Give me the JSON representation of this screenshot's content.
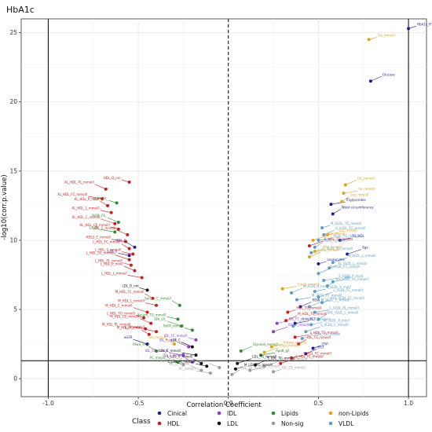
{
  "chart_data": {
    "type": "scatter",
    "title": "HbA1c",
    "xlabel": "Correlation Coefficient",
    "ylabel": "-log10(corr.p.value)",
    "xlim": [
      -1.15,
      1.1
    ],
    "ylim": [
      -1.3,
      26
    ],
    "xticks": [
      -1.0,
      -0.5,
      0.0,
      0.5,
      1.0
    ],
    "xtick_labels": [
      "-1.0",
      "-0.5",
      "0.0",
      "0.5",
      "1.0"
    ],
    "yticks": [
      0,
      5,
      10,
      15,
      20,
      25
    ],
    "ytick_labels": [
      "0",
      "5",
      "10",
      "15",
      "20",
      "25"
    ],
    "grid": true,
    "hline": 1.3,
    "vlines": [
      -1.0,
      0.0,
      1.0
    ],
    "legend_title": "Class",
    "legend_position": "bottom",
    "series": [
      {
        "name": "Cinical",
        "color": "#1f1f8f",
        "points": [
          {
            "x": 1.0,
            "y": 25.3,
            "label": "HbA1c_IFCC"
          },
          {
            "x": 0.79,
            "y": 21.5,
            "label": "Glucose"
          },
          {
            "x": 0.57,
            "y": 12.6,
            "label": "Triglycerides"
          },
          {
            "x": 0.58,
            "y": 11.9,
            "label": "Waist circumference"
          },
          {
            "x": 0.62,
            "y": 10.0,
            "label": "TG_HDL"
          },
          {
            "x": 0.66,
            "y": 9.0,
            "label": "Age"
          },
          {
            "x": 0.5,
            "y": 8.3,
            "label": "Leukocytes"
          },
          {
            "x": 0.4,
            "y": 5.2,
            "label": "RDW"
          },
          {
            "x": 0.37,
            "y": 4.0,
            "label": "ALT"
          },
          {
            "x": -0.52,
            "y": 9.5,
            "label": "HDL_C"
          },
          {
            "x": -0.55,
            "y": 8.9,
            "label": "LDL_C"
          },
          {
            "x": -0.45,
            "y": 2.5,
            "label": "eGFR"
          },
          {
            "x": 0.47,
            "y": 2.2,
            "label": "CRP"
          },
          {
            "x": 0.43,
            "y": 1.8,
            "label": "GGT"
          }
        ]
      },
      {
        "name": "HDL",
        "color": "#c81e1e",
        "points": [
          {
            "x": -0.55,
            "y": 14.2,
            "label": "HDL_D_nm"
          },
          {
            "x": -0.68,
            "y": 13.7,
            "label": "XL_HDL_PL_mmol/l"
          },
          {
            "x": -0.7,
            "y": 13.0,
            "label": "XL_HDL_FC_mmol/l"
          },
          {
            "x": -0.67,
            "y": 12.5,
            "label": "XL_HDL_P_mol/l"
          },
          {
            "x": -0.65,
            "y": 12.0,
            "label": "XL_HDL_L_mmol/l"
          },
          {
            "x": -0.63,
            "y": 11.2,
            "label": "XL_HDL_C_mmol/l"
          },
          {
            "x": -0.61,
            "y": 10.8,
            "label": "XL_HDL_CE_mmol/l"
          },
          {
            "x": -0.56,
            "y": 10.4,
            "label": "HDL_C_mmol/l"
          },
          {
            "x": -0.57,
            "y": 9.9,
            "label": "HDL2_C_mmol/l"
          },
          {
            "x": -0.55,
            "y": 9.4,
            "label": "L_HDL_FC_mmol/l"
          },
          {
            "x": -0.53,
            "y": 9.0,
            "label": "L_HDL_C_mmol/l"
          },
          {
            "x": -0.55,
            "y": 8.6,
            "label": "L_HDL_CE_mmol/l"
          },
          {
            "x": -0.54,
            "y": 8.2,
            "label": "L_HDL_PL_mmol/l"
          },
          {
            "x": -0.52,
            "y": 7.8,
            "label": "L_HDL_P_mol/l"
          },
          {
            "x": -0.48,
            "y": 7.3,
            "label": "L_HDL_L_mmol/l"
          },
          {
            "x": -0.42,
            "y": 5.8,
            "label": "M_HDL_FC_mmol/l"
          },
          {
            "x": -0.4,
            "y": 5.3,
            "label": "M_HDL_L_mmol/l"
          },
          {
            "x": -0.45,
            "y": 4.8,
            "label": "M_HDL_C_mmol/l"
          },
          {
            "x": -0.47,
            "y": 4.4,
            "label": "L_HDL_TG_mmol/l"
          },
          {
            "x": -0.43,
            "y": 4.0,
            "label": "M_HDL_CE_mmol/l"
          },
          {
            "x": -0.46,
            "y": 3.6,
            "label": "M_HDL_PL_mmol/l"
          },
          {
            "x": -0.44,
            "y": 3.2,
            "label": "M_HDL_P_mol/l"
          },
          {
            "x": -0.4,
            "y": 3.4,
            "label": "L_DL_mmol/l"
          },
          {
            "x": 0.45,
            "y": 9.6,
            "label": "S_HDL_TG_mmol/l"
          },
          {
            "x": 0.33,
            "y": 4.8,
            "label": "HDL_TG_mmol/l"
          },
          {
            "x": 0.32,
            "y": 4.2,
            "label": "M_HDL_TG_mmol/l"
          },
          {
            "x": 0.37,
            "y": 3.0,
            "label": "L_HDL_TG_mmol/l"
          },
          {
            "x": 0.39,
            "y": 2.5,
            "label": "IDL_TG_mmol/l"
          },
          {
            "x": 0.35,
            "y": 1.5,
            "label": "S_HDL_FC_mmol/l"
          },
          {
            "x": 0.29,
            "y": 1.1,
            "label": "S_HDL_PL_mmol/l"
          }
        ]
      },
      {
        "name": "IDL",
        "color": "#8a3cc4",
        "points": [
          {
            "x": -0.18,
            "y": 2.8,
            "label": "IDL_FC_mmol/l"
          },
          {
            "x": -0.22,
            "y": 2.3,
            "label": "IDL_P_mol/l"
          },
          {
            "x": -0.25,
            "y": 1.7,
            "label": "IDL_CE_mmol/l"
          },
          {
            "x": -0.2,
            "y": 1.2,
            "label": "IDL_L_mmol/l"
          },
          {
            "x": 0.27,
            "y": 4.0,
            "label": "IDL_FC_mmol/l"
          },
          {
            "x": 0.25,
            "y": 3.4,
            "label": "IDL_C_mmol/l"
          }
        ]
      },
      {
        "name": "LDL",
        "color": "#111111",
        "points": [
          {
            "x": -0.45,
            "y": 6.4,
            "label": "LDL_D_nm"
          },
          {
            "x": -0.2,
            "y": 2.3,
            "label": "LDL_C"
          },
          {
            "x": -0.18,
            "y": 1.7,
            "label": "LDL_C_mmol/l"
          },
          {
            "x": -0.15,
            "y": 1.1,
            "label": "L_LDL_C_mmol/l"
          },
          {
            "x": -0.12,
            "y": 0.9,
            "label": "L_LDL_PL_mmol/l"
          },
          {
            "x": 0.05,
            "y": 1.1,
            "label": "LDL_TG_mmol/l"
          },
          {
            "x": 0.04,
            "y": 0.7,
            "label": "M_LDL_TG_mmol/l"
          },
          {
            "x": 0.15,
            "y": 1.0,
            "label": "S_LDL_TG_mmol/l"
          }
        ]
      },
      {
        "name": "Lipids",
        "color": "#2e8b2e",
        "points": [
          {
            "x": -0.62,
            "y": 12.7,
            "label": "TotFA_FA_"
          },
          {
            "x": -0.61,
            "y": 11.3,
            "label": "PUFA_FA_"
          },
          {
            "x": -0.63,
            "y": 10.6,
            "label": "LA_FA_"
          },
          {
            "x": -0.27,
            "y": 5.3,
            "label": "Serum_C_mmol/l"
          },
          {
            "x": -0.28,
            "y": 4.3,
            "label": "Serum_TG_mmol/l"
          },
          {
            "x": -0.26,
            "y": 3.8,
            "label": "SFA_FA_"
          },
          {
            "x": -0.2,
            "y": 3.5,
            "label": "TotFA_mmol/l"
          },
          {
            "x": 0.07,
            "y": 2.0,
            "label": "Glycerol_mmol/l"
          },
          {
            "x": 0.18,
            "y": 1.7,
            "label": "ApoB_g/l"
          },
          {
            "x": -0.4,
            "y": 2.0,
            "label": "FAw3_FA_"
          },
          {
            "x": -0.28,
            "y": 1.2,
            "label": "PC_mmol/l"
          }
        ]
      },
      {
        "name": "Non-sig",
        "color": "#9c9c9c",
        "points": [
          {
            "x": -0.25,
            "y": 1.0,
            "label": "LA_mmol/l"
          },
          {
            "x": -0.15,
            "y": 0.6,
            "label": "IDL_L_mmol/l"
          },
          {
            "x": -0.1,
            "y": 0.4,
            "label": "PC_mmol/l"
          },
          {
            "x": 0.02,
            "y": 0.3,
            "label": "LDL_TG_mmol/l"
          },
          {
            "x": 0.12,
            "y": 0.6,
            "label": "IDL_P_mol/l"
          },
          {
            "x": 0.2,
            "y": 0.9,
            "label": "S_LDL_TG_mmol/l"
          },
          {
            "x": 0.25,
            "y": 0.5,
            "label": "IDL_CE_mmol/l"
          },
          {
            "x": -0.05,
            "y": 0.8,
            "label": "LDL_FC_mmol/l"
          }
        ]
      },
      {
        "name": "non-Lipids",
        "color": "#e0a31a",
        "points": [
          {
            "x": 0.78,
            "y": 24.5,
            "label": "Glc_mmol/l"
          },
          {
            "x": 0.65,
            "y": 14.0,
            "label": "Glc_mmol/l"
          },
          {
            "x": 0.64,
            "y": 13.4,
            "label": "Ile_mmol/l"
          },
          {
            "x": 0.63,
            "y": 12.8,
            "label": "Leu_mmol/l"
          },
          {
            "x": 0.55,
            "y": 10.4,
            "label": "Lac_mmol/l"
          },
          {
            "x": 0.47,
            "y": 10.0,
            "label": "Val_mmol/l"
          },
          {
            "x": 0.48,
            "y": 9.2,
            "label": "Phe_mmol/l"
          },
          {
            "x": 0.45,
            "y": 8.8,
            "label": "Ala_mmol/l"
          },
          {
            "x": 0.3,
            "y": 6.5,
            "label": "GlycA_mmol/l"
          },
          {
            "x": -0.3,
            "y": 2.5,
            "label": "Gln_mmol/l"
          },
          {
            "x": 0.24,
            "y": 2.3,
            "label": "Citrate_mmol/l"
          },
          {
            "x": 0.2,
            "y": 1.9,
            "label": "Crea_mmol/l"
          }
        ]
      },
      {
        "name": "VLDL",
        "color": "#5b9ec8",
        "points": [
          {
            "x": 0.52,
            "y": 10.9,
            "label": "M_VLDL_TG_mmol/l"
          },
          {
            "x": 0.53,
            "y": 10.4,
            "label": "S_VLDL_TG_mmol/l"
          },
          {
            "x": 0.5,
            "y": 10.0,
            "label": "VLDL_TG_mmol/l"
          },
          {
            "x": 0.48,
            "y": 9.5,
            "label": "VLDL_C_mmol/l"
          },
          {
            "x": 0.46,
            "y": 9.1,
            "label": "L_VLDL_TG_mmol/l"
          },
          {
            "x": 0.58,
            "y": 8.4,
            "label": "M_VLDL_L_mmol/l"
          },
          {
            "x": 0.56,
            "y": 8.0,
            "label": "XL_VLDL_L_mmol/l"
          },
          {
            "x": 0.5,
            "y": 7.6,
            "label": "S_VLDL_FC_mmol/l"
          },
          {
            "x": 0.53,
            "y": 7.1,
            "label": "S_VLDL_P_mol/l"
          },
          {
            "x": 0.55,
            "y": 6.7,
            "label": "XS_VLDL_TG_mmol/l"
          },
          {
            "x": 0.48,
            "y": 6.3,
            "label": "L_VLDL_P_mol/l"
          },
          {
            "x": 0.5,
            "y": 5.9,
            "label": "L_VLDL_FC_mmol/l"
          },
          {
            "x": 0.52,
            "y": 5.5,
            "label": "XXL_VLDL_FC_mmol/l"
          },
          {
            "x": 0.45,
            "y": 5.2,
            "label": "M_VLDL_C_mmol/l"
          },
          {
            "x": 0.48,
            "y": 4.8,
            "label": "L_VLDL_PL_mmol/l"
          },
          {
            "x": 0.5,
            "y": 4.3,
            "label": "XXL_VLDL_L_mmol/l"
          },
          {
            "x": 0.46,
            "y": 3.9,
            "label": "XL_VLDL_P_mol/l"
          },
          {
            "x": 0.43,
            "y": 3.4,
            "label": "L_VLDL_C_mmol/l"
          },
          {
            "x": 0.41,
            "y": 2.9,
            "label": "L_VLDL_CE_mmol/l"
          },
          {
            "x": 0.35,
            "y": 6.2,
            "label": "M_VLDL_P_mol/l"
          },
          {
            "x": 0.38,
            "y": 5.7,
            "label": "M_VLDL_FC_mmol/l"
          },
          {
            "x": 0.36,
            "y": 3.8,
            "label": "S_VLDL_C_mmol/l"
          },
          {
            "x": 0.58,
            "y": 7.0,
            "label": "BMI"
          }
        ]
      }
    ]
  }
}
